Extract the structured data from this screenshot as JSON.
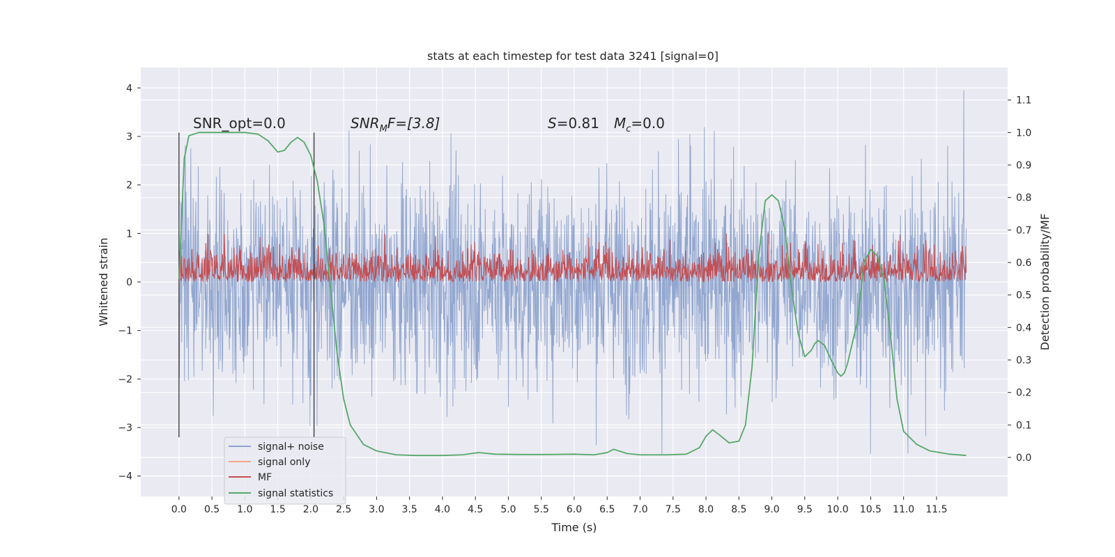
{
  "chart_data": {
    "type": "line",
    "title": "stats at each timestep for test data 3241 [signal=0]",
    "xlabel": "Time (s)",
    "ylabel": "Whitened strain",
    "ylabel_right": "Detection probability/MF",
    "xlim": [
      -0.58,
      12.58
    ],
    "ylim": [
      -4.42,
      4.42
    ],
    "ylim_right": [
      -0.12,
      1.2
    ],
    "x_ticks": [
      "0.0",
      "0.5",
      "1.0",
      "1.5",
      "2.0",
      "2.5",
      "3.0",
      "3.5",
      "4.0",
      "4.5",
      "5.0",
      "5.5",
      "6.0",
      "6.5",
      "7.0",
      "7.5",
      "8.0",
      "8.5",
      "9.0",
      "9.5",
      "10.0",
      "10.5",
      "11.0",
      "11.5"
    ],
    "y_ticks_left": [
      "4",
      "3",
      "2",
      "1",
      "0",
      "−1",
      "−2",
      "−3",
      "−4"
    ],
    "y_ticks_right": [
      "1.1",
      "1.0",
      "0.9",
      "0.8",
      "0.7",
      "0.6",
      "0.5",
      "0.4",
      "0.3",
      "0.2",
      "0.1",
      "0.0"
    ],
    "grid": true,
    "legend_position": "lower-left",
    "annotations": {
      "snr_opt": "SNR_opt=0.0",
      "snr_mf_base": "SNR",
      "snr_mf_sub": "M",
      "snr_mf_rest": "F=[3.8]",
      "s_italic": "S",
      "s_value": "=0.81",
      "mc_italic": "M",
      "mc_sub": "c",
      "mc_value": "=0.0"
    },
    "vlines": [
      0.0,
      2.05
    ],
    "series": [
      {
        "name": "signal+ noise",
        "color": "#8da3ce",
        "axis": "left",
        "kind": "noise",
        "envelope": [
          -3.55,
          3.95
        ]
      },
      {
        "name": "signal only",
        "color": "#f0a58a",
        "axis": "left",
        "kind": "none"
      },
      {
        "name": "MF",
        "color": "#c44e52",
        "axis": "left",
        "kind": "noise",
        "envelope": [
          0.0,
          1.0
        ]
      },
      {
        "name": "signal statistics",
        "color": "#55a868",
        "axis": "right",
        "kind": "line",
        "x": [
          0.0,
          0.08,
          0.15,
          0.3,
          0.5,
          0.8,
          1.0,
          1.2,
          1.35,
          1.5,
          1.6,
          1.7,
          1.8,
          1.9,
          2.0,
          2.1,
          2.2,
          2.3,
          2.4,
          2.5,
          2.6,
          2.8,
          3.0,
          3.3,
          3.6,
          4.0,
          4.3,
          4.55,
          4.8,
          5.2,
          5.6,
          6.0,
          6.3,
          6.5,
          6.6,
          6.8,
          7.0,
          7.4,
          7.7,
          7.9,
          8.0,
          8.1,
          8.2,
          8.35,
          8.5,
          8.6,
          8.7,
          8.8,
          8.9,
          9.0,
          9.1,
          9.2,
          9.3,
          9.4,
          9.5,
          9.6,
          9.65,
          9.7,
          9.8,
          9.9,
          10.0,
          10.05,
          10.1,
          10.15,
          10.3,
          10.4,
          10.5,
          10.6,
          10.7,
          10.8,
          10.9,
          11.0,
          11.2,
          11.4,
          11.7,
          11.95
        ],
        "y": [
          0.55,
          0.92,
          0.99,
          1.0,
          1.0,
          1.0,
          1.0,
          0.995,
          0.975,
          0.94,
          0.945,
          0.97,
          0.985,
          0.97,
          0.93,
          0.85,
          0.72,
          0.52,
          0.32,
          0.18,
          0.1,
          0.04,
          0.02,
          0.008,
          0.006,
          0.006,
          0.008,
          0.015,
          0.01,
          0.009,
          0.009,
          0.01,
          0.008,
          0.015,
          0.025,
          0.012,
          0.008,
          0.008,
          0.01,
          0.03,
          0.065,
          0.085,
          0.07,
          0.045,
          0.05,
          0.1,
          0.28,
          0.62,
          0.79,
          0.808,
          0.79,
          0.7,
          0.52,
          0.38,
          0.31,
          0.33,
          0.35,
          0.36,
          0.345,
          0.3,
          0.26,
          0.25,
          0.26,
          0.29,
          0.42,
          0.6,
          0.64,
          0.62,
          0.55,
          0.38,
          0.18,
          0.08,
          0.04,
          0.02,
          0.01,
          0.006
        ]
      }
    ]
  }
}
